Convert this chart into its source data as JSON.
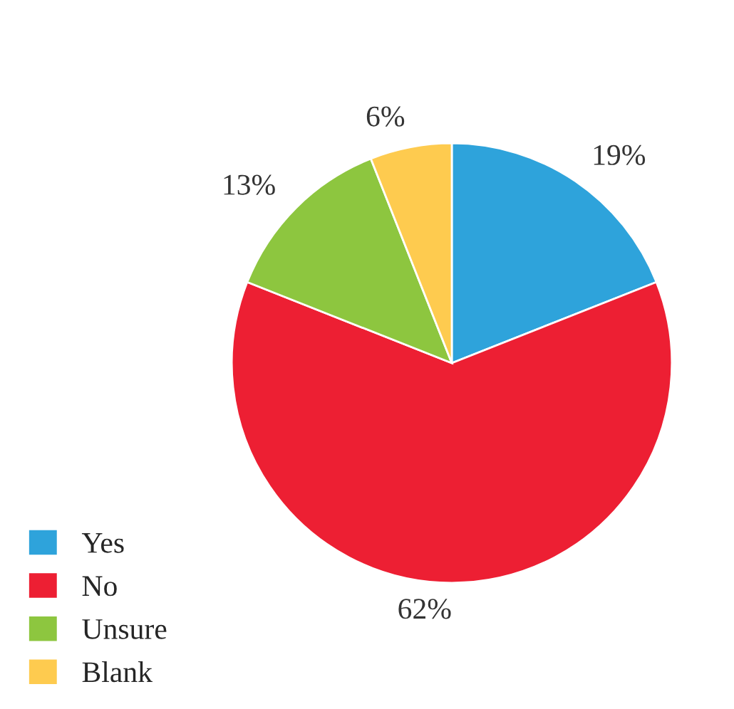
{
  "chart_data": {
    "type": "pie",
    "categories": [
      "Yes",
      "No",
      "Unsure",
      "Blank"
    ],
    "values": [
      19,
      62,
      13,
      6
    ],
    "colors": [
      "#2ea3db",
      "#ed1f33",
      "#8dc63f",
      "#fecb4f"
    ],
    "value_labels": [
      "19%",
      "62%",
      "13%",
      "6%"
    ],
    "legend": "bottom left"
  }
}
